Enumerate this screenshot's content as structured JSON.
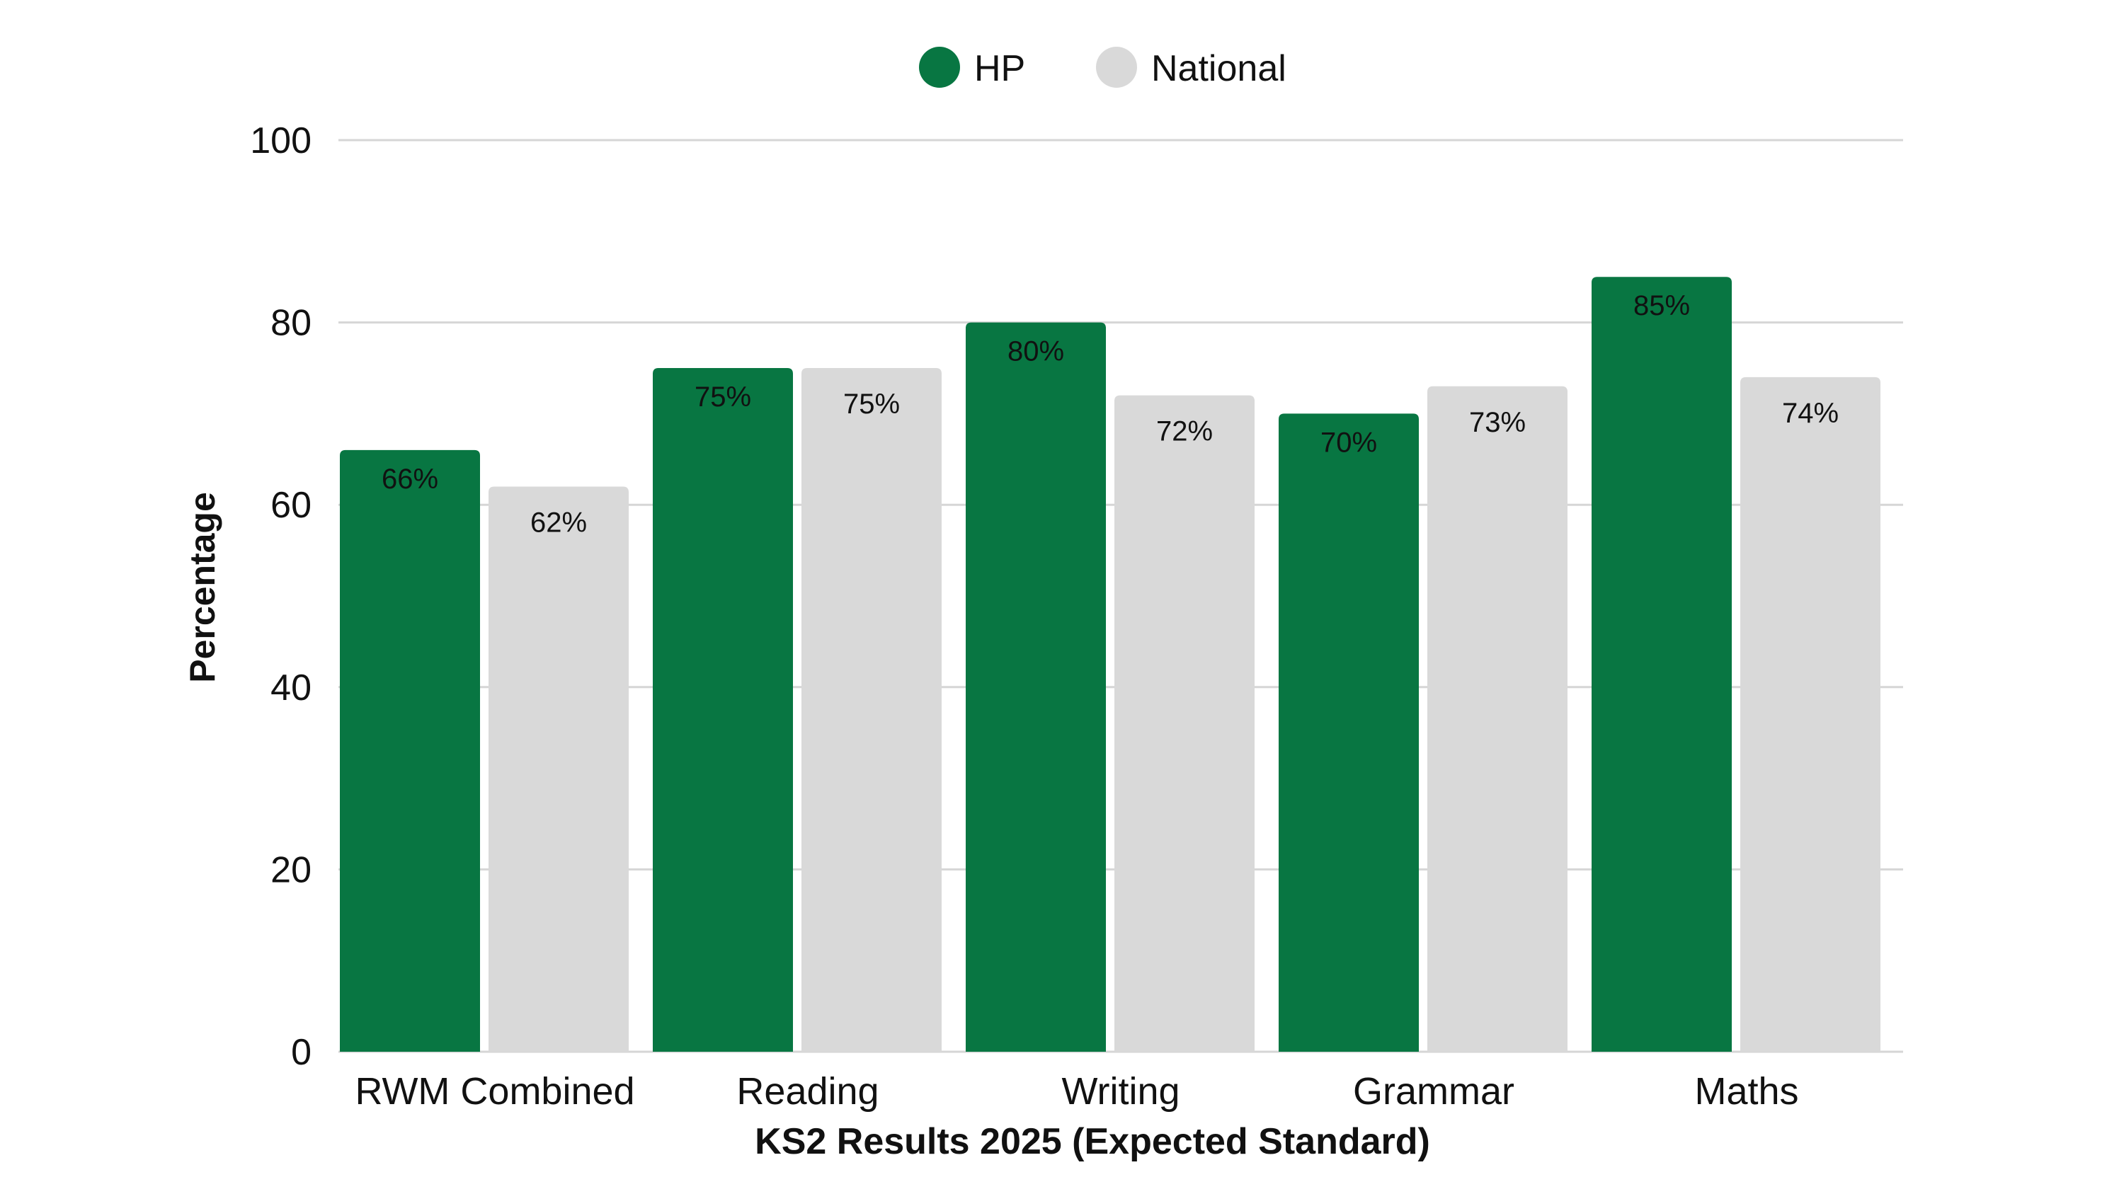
{
  "chart_data": {
    "type": "bar",
    "title": "",
    "xlabel": "KS2 Results 2025 (Expected Standard)",
    "ylabel": "Percentage",
    "ylim": [
      0,
      100
    ],
    "yticks": [
      0,
      20,
      40,
      60,
      80,
      100
    ],
    "grid": true,
    "legend_position": "top-center",
    "categories": [
      "RWM Combined",
      "Reading",
      "Writing",
      "Grammar",
      "Maths"
    ],
    "series": [
      {
        "name": "HP",
        "color": "#087642",
        "values": [
          66,
          75,
          80,
          70,
          85
        ],
        "labels": [
          "66%",
          "75%",
          "80%",
          "70%",
          "85%"
        ]
      },
      {
        "name": "National",
        "color": "#d9d9d9",
        "values": [
          62,
          75,
          72,
          73,
          74
        ],
        "labels": [
          "62%",
          "75%",
          "72%",
          "73%",
          "74%"
        ]
      }
    ]
  }
}
